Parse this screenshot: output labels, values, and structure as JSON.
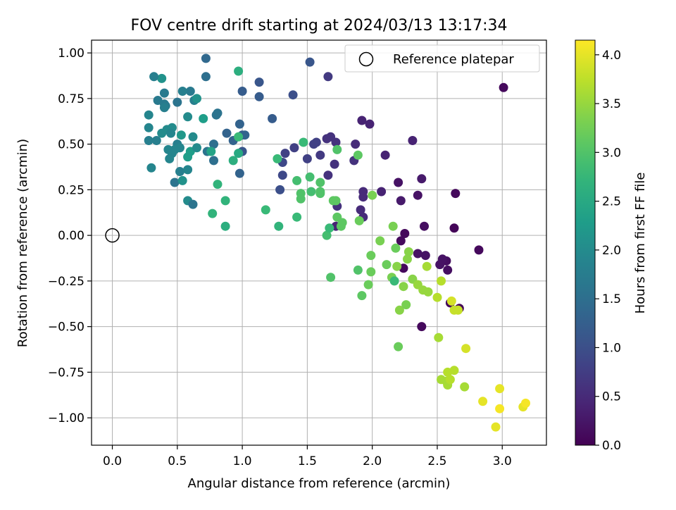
{
  "chart_data": {
    "type": "scatter",
    "title": "FOV centre drift starting at 2024/03/13 13:17:34",
    "xlabel": "Angular distance from reference (arcmin)",
    "ylabel": "Rotation from reference (arcmin)",
    "xlim": [
      -0.16,
      3.34
    ],
    "ylim": [
      -1.15,
      1.07
    ],
    "x_ticks": [
      0.0,
      0.5,
      1.0,
      1.5,
      2.0,
      2.5,
      3.0
    ],
    "x_tick_labels": [
      "0.0",
      "0.5",
      "1.0",
      "1.5",
      "2.0",
      "2.5",
      "3.0"
    ],
    "y_ticks": [
      1.0,
      0.75,
      0.5,
      0.25,
      0.0,
      -0.25,
      -0.5,
      -0.75,
      -1.0
    ],
    "y_tick_labels": [
      "1.00",
      "0.75",
      "0.50",
      "0.25",
      "0.00",
      "−0.25",
      "−0.50",
      "−0.75",
      "−1.00"
    ],
    "grid": true,
    "legend": {
      "placement": "top-right",
      "entries": [
        {
          "label": "Reference platepar",
          "marker": "open-circle"
        }
      ]
    },
    "reference_point": {
      "x": 0.0,
      "y": 0.0
    },
    "colorbar": {
      "label": "Hours from first FF file",
      "colormap": "viridis",
      "range": [
        0.0,
        4.15
      ],
      "ticks": [
        0.0,
        0.5,
        1.0,
        1.5,
        2.0,
        2.5,
        3.0,
        3.5,
        4.0
      ],
      "tick_labels": [
        "0.0",
        "0.5",
        "1.0",
        "1.5",
        "2.0",
        "2.5",
        "3.0",
        "3.5",
        "4.0"
      ]
    },
    "series": [
      {
        "points": [
          {
            "x": 3.01,
            "y": 0.81,
            "c": 0.1
          },
          {
            "x": 2.82,
            "y": -0.08,
            "c": 0.1
          },
          {
            "x": 2.67,
            "y": -0.4,
            "c": 0.05
          },
          {
            "x": 2.63,
            "y": 0.04,
            "c": 0.05
          },
          {
            "x": 2.64,
            "y": 0.23,
            "c": 0.1
          },
          {
            "x": 2.6,
            "y": -0.37,
            "c": 0.1
          },
          {
            "x": 2.58,
            "y": -0.19,
            "c": 0.15
          },
          {
            "x": 2.57,
            "y": -0.14,
            "c": 0.15
          },
          {
            "x": 2.54,
            "y": -0.13,
            "c": 0.2
          },
          {
            "x": 2.52,
            "y": -0.16,
            "c": 0.2
          },
          {
            "x": 2.41,
            "y": -0.11,
            "c": 0.2
          },
          {
            "x": 2.38,
            "y": -0.5,
            "c": 0.1
          },
          {
            "x": 2.35,
            "y": -0.1,
            "c": 0.2
          },
          {
            "x": 2.4,
            "y": 0.05,
            "c": 0.15
          },
          {
            "x": 2.35,
            "y": 0.22,
            "c": 0.2
          },
          {
            "x": 2.38,
            "y": 0.31,
            "c": 0.3
          },
          {
            "x": 2.31,
            "y": 0.52,
            "c": 0.4
          },
          {
            "x": 2.25,
            "y": 0.01,
            "c": 0.1
          },
          {
            "x": 2.22,
            "y": -0.03,
            "c": 0.1
          },
          {
            "x": 2.24,
            "y": -0.18,
            "c": 0.1
          },
          {
            "x": 2.2,
            "y": 0.29,
            "c": 0.2
          },
          {
            "x": 2.22,
            "y": 0.19,
            "c": 0.3
          },
          {
            "x": 2.1,
            "y": 0.44,
            "c": 0.4
          },
          {
            "x": 2.07,
            "y": 0.24,
            "c": 0.4
          },
          {
            "x": 1.98,
            "y": 0.61,
            "c": 0.4
          },
          {
            "x": 1.92,
            "y": 0.63,
            "c": 0.4
          },
          {
            "x": 1.87,
            "y": 0.5,
            "c": 0.5
          },
          {
            "x": 1.86,
            "y": 0.41,
            "c": 0.6
          },
          {
            "x": 1.93,
            "y": 0.24,
            "c": 0.5
          },
          {
            "x": 1.93,
            "y": 0.21,
            "c": 0.5
          },
          {
            "x": 1.91,
            "y": 0.14,
            "c": 0.5
          },
          {
            "x": 1.93,
            "y": 0.1,
            "c": 0.5
          },
          {
            "x": 1.72,
            "y": 0.05,
            "c": 0.4
          },
          {
            "x": 1.73,
            "y": 0.16,
            "c": 0.6
          },
          {
            "x": 1.72,
            "y": 0.51,
            "c": 0.6
          },
          {
            "x": 1.68,
            "y": 0.54,
            "c": 0.6
          },
          {
            "x": 1.65,
            "y": 0.53,
            "c": 0.6
          },
          {
            "x": 1.71,
            "y": 0.39,
            "c": 0.6
          },
          {
            "x": 1.66,
            "y": 0.33,
            "c": 0.6
          },
          {
            "x": 1.66,
            "y": 0.87,
            "c": 0.7
          },
          {
            "x": 1.6,
            "y": 0.44,
            "c": 0.7
          },
          {
            "x": 1.57,
            "y": 0.51,
            "c": 0.8
          },
          {
            "x": 1.55,
            "y": 0.5,
            "c": 0.8
          },
          {
            "x": 1.5,
            "y": 0.42,
            "c": 0.8
          },
          {
            "x": 1.52,
            "y": 0.95,
            "c": 1.1
          },
          {
            "x": 1.4,
            "y": 0.48,
            "c": 0.8
          },
          {
            "x": 1.33,
            "y": 0.45,
            "c": 0.8
          },
          {
            "x": 1.31,
            "y": 0.4,
            "c": 0.9
          },
          {
            "x": 1.31,
            "y": 0.33,
            "c": 0.9
          },
          {
            "x": 1.29,
            "y": 0.25,
            "c": 1.0
          },
          {
            "x": 1.39,
            "y": 0.77,
            "c": 1.0
          },
          {
            "x": 1.23,
            "y": 0.64,
            "c": 1.2
          },
          {
            "x": 1.13,
            "y": 0.76,
            "c": 1.2
          },
          {
            "x": 1.13,
            "y": 0.84,
            "c": 1.1
          },
          {
            "x": 1.0,
            "y": 0.79,
            "c": 1.2
          },
          {
            "x": 1.0,
            "y": 0.55,
            "c": 1.2
          },
          {
            "x": 1.02,
            "y": 0.55,
            "c": 1.3
          },
          {
            "x": 1.0,
            "y": 0.46,
            "c": 1.1
          },
          {
            "x": 0.98,
            "y": 0.61,
            "c": 1.3
          },
          {
            "x": 0.93,
            "y": 0.52,
            "c": 1.3
          },
          {
            "x": 0.88,
            "y": 0.56,
            "c": 1.3
          },
          {
            "x": 0.98,
            "y": 0.34,
            "c": 1.3
          },
          {
            "x": 0.78,
            "y": 0.5,
            "c": 1.5
          },
          {
            "x": 0.78,
            "y": 0.41,
            "c": 1.5
          },
          {
            "x": 0.72,
            "y": 0.97,
            "c": 1.4
          },
          {
            "x": 0.72,
            "y": 0.87,
            "c": 1.5
          },
          {
            "x": 0.8,
            "y": 0.66,
            "c": 1.6
          },
          {
            "x": 0.81,
            "y": 0.67,
            "c": 1.6
          },
          {
            "x": 0.73,
            "y": 0.46,
            "c": 1.6
          },
          {
            "x": 0.6,
            "y": 0.79,
            "c": 1.7
          },
          {
            "x": 0.54,
            "y": 0.79,
            "c": 1.8
          },
          {
            "x": 0.5,
            "y": 0.73,
            "c": 1.6
          },
          {
            "x": 0.38,
            "y": 0.86,
            "c": 2.1
          },
          {
            "x": 0.32,
            "y": 0.87,
            "c": 1.8
          },
          {
            "x": 0.4,
            "y": 0.78,
            "c": 1.7
          },
          {
            "x": 0.35,
            "y": 0.74,
            "c": 1.7
          },
          {
            "x": 0.4,
            "y": 0.72,
            "c": 1.7
          },
          {
            "x": 0.41,
            "y": 0.71,
            "c": 1.7
          },
          {
            "x": 0.4,
            "y": 0.7,
            "c": 1.8
          },
          {
            "x": 0.63,
            "y": 0.74,
            "c": 1.8
          },
          {
            "x": 0.65,
            "y": 0.75,
            "c": 2.1
          },
          {
            "x": 0.28,
            "y": 0.66,
            "c": 1.9
          },
          {
            "x": 0.58,
            "y": 0.65,
            "c": 2.0
          },
          {
            "x": 0.28,
            "y": 0.59,
            "c": 1.9
          },
          {
            "x": 0.28,
            "y": 0.52,
            "c": 1.8
          },
          {
            "x": 0.34,
            "y": 0.52,
            "c": 1.8
          },
          {
            "x": 0.38,
            "y": 0.56,
            "c": 2.0
          },
          {
            "x": 0.42,
            "y": 0.58,
            "c": 2.0
          },
          {
            "x": 0.46,
            "y": 0.59,
            "c": 2.0
          },
          {
            "x": 0.45,
            "y": 0.56,
            "c": 1.9
          },
          {
            "x": 0.53,
            "y": 0.55,
            "c": 2.2
          },
          {
            "x": 0.5,
            "y": 0.5,
            "c": 1.8
          },
          {
            "x": 0.52,
            "y": 0.48,
            "c": 1.9
          },
          {
            "x": 0.48,
            "y": 0.47,
            "c": 1.9
          },
          {
            "x": 0.43,
            "y": 0.47,
            "c": 1.9
          },
          {
            "x": 0.46,
            "y": 0.45,
            "c": 1.9
          },
          {
            "x": 0.44,
            "y": 0.42,
            "c": 1.9
          },
          {
            "x": 0.58,
            "y": 0.43,
            "c": 2.3
          },
          {
            "x": 0.6,
            "y": 0.46,
            "c": 2.3
          },
          {
            "x": 0.62,
            "y": 0.54,
            "c": 2.0
          },
          {
            "x": 0.65,
            "y": 0.48,
            "c": 2.0
          },
          {
            "x": 0.52,
            "y": 0.35,
            "c": 1.8
          },
          {
            "x": 0.48,
            "y": 0.29,
            "c": 1.6
          },
          {
            "x": 0.3,
            "y": 0.37,
            "c": 1.9
          },
          {
            "x": 0.58,
            "y": 0.36,
            "c": 1.9
          },
          {
            "x": 0.54,
            "y": 0.3,
            "c": 2.1
          },
          {
            "x": 0.58,
            "y": 0.19,
            "c": 2.0
          },
          {
            "x": 0.62,
            "y": 0.17,
            "c": 1.6
          },
          {
            "x": 0.7,
            "y": 0.64,
            "c": 2.3
          },
          {
            "x": 0.76,
            "y": 0.46,
            "c": 2.4
          },
          {
            "x": 0.81,
            "y": 0.28,
            "c": 2.7
          },
          {
            "x": 0.77,
            "y": 0.12,
            "c": 2.7
          },
          {
            "x": 0.87,
            "y": 0.19,
            "c": 2.7
          },
          {
            "x": 0.87,
            "y": 0.05,
            "c": 2.6
          },
          {
            "x": 0.93,
            "y": 0.41,
            "c": 2.6
          },
          {
            "x": 0.97,
            "y": 0.45,
            "c": 2.5
          },
          {
            "x": 0.97,
            "y": 0.54,
            "c": 2.8
          },
          {
            "x": 0.97,
            "y": 0.9,
            "c": 2.6
          },
          {
            "x": 1.18,
            "y": 0.14,
            "c": 2.8
          },
          {
            "x": 1.28,
            "y": 0.05,
            "c": 2.7
          },
          {
            "x": 1.27,
            "y": 0.42,
            "c": 2.8
          },
          {
            "x": 1.42,
            "y": 0.3,
            "c": 2.9
          },
          {
            "x": 1.42,
            "y": 0.1,
            "c": 2.8
          },
          {
            "x": 1.45,
            "y": 0.23,
            "c": 3.0
          },
          {
            "x": 1.45,
            "y": 0.2,
            "c": 3.0
          },
          {
            "x": 1.47,
            "y": 0.51,
            "c": 2.8
          },
          {
            "x": 1.52,
            "y": 0.32,
            "c": 2.9
          },
          {
            "x": 1.53,
            "y": 0.24,
            "c": 2.9
          },
          {
            "x": 1.6,
            "y": 0.29,
            "c": 3.0
          },
          {
            "x": 1.6,
            "y": 0.23,
            "c": 3.0
          },
          {
            "x": 1.6,
            "y": 0.24,
            "c": 3.0
          },
          {
            "x": 1.65,
            "y": 0.0,
            "c": 2.9
          },
          {
            "x": 1.67,
            "y": 0.04,
            "c": 2.8
          },
          {
            "x": 1.7,
            "y": 0.19,
            "c": 3.1
          },
          {
            "x": 1.72,
            "y": 0.19,
            "c": 3.1
          },
          {
            "x": 1.73,
            "y": 0.47,
            "c": 3.0
          },
          {
            "x": 1.73,
            "y": 0.1,
            "c": 3.1
          },
          {
            "x": 1.76,
            "y": 0.05,
            "c": 3.1
          },
          {
            "x": 1.77,
            "y": 0.07,
            "c": 3.1
          },
          {
            "x": 1.68,
            "y": -0.23,
            "c": 3.0
          },
          {
            "x": 1.89,
            "y": 0.44,
            "c": 3.1
          },
          {
            "x": 1.9,
            "y": 0.08,
            "c": 3.2
          },
          {
            "x": 1.89,
            "y": -0.19,
            "c": 3.0
          },
          {
            "x": 1.92,
            "y": -0.33,
            "c": 3.1
          },
          {
            "x": 1.97,
            "y": -0.27,
            "c": 3.2
          },
          {
            "x": 1.99,
            "y": -0.11,
            "c": 3.2
          },
          {
            "x": 1.99,
            "y": -0.2,
            "c": 3.2
          },
          {
            "x": 2.0,
            "y": 0.22,
            "c": 3.3
          },
          {
            "x": 2.06,
            "y": -0.03,
            "c": 3.3
          },
          {
            "x": 2.11,
            "y": -0.16,
            "c": 3.2
          },
          {
            "x": 2.15,
            "y": -0.23,
            "c": 3.3
          },
          {
            "x": 2.16,
            "y": 0.05,
            "c": 3.3
          },
          {
            "x": 2.17,
            "y": -0.25,
            "c": 2.8
          },
          {
            "x": 2.18,
            "y": -0.07,
            "c": 3.2
          },
          {
            "x": 2.19,
            "y": -0.17,
            "c": 3.4
          },
          {
            "x": 2.2,
            "y": -0.61,
            "c": 3.2
          },
          {
            "x": 2.21,
            "y": -0.41,
            "c": 3.4
          },
          {
            "x": 2.24,
            "y": -0.28,
            "c": 3.4
          },
          {
            "x": 2.26,
            "y": -0.38,
            "c": 3.3
          },
          {
            "x": 2.27,
            "y": -0.13,
            "c": 3.4
          },
          {
            "x": 2.28,
            "y": -0.09,
            "c": 3.4
          },
          {
            "x": 2.31,
            "y": -0.24,
            "c": 3.4
          },
          {
            "x": 2.35,
            "y": -0.27,
            "c": 3.5
          },
          {
            "x": 2.39,
            "y": -0.3,
            "c": 3.5
          },
          {
            "x": 2.42,
            "y": -0.17,
            "c": 3.6
          },
          {
            "x": 2.43,
            "y": -0.31,
            "c": 3.5
          },
          {
            "x": 2.5,
            "y": -0.34,
            "c": 3.7
          },
          {
            "x": 2.51,
            "y": -0.56,
            "c": 3.6
          },
          {
            "x": 2.53,
            "y": -0.25,
            "c": 3.7
          },
          {
            "x": 2.53,
            "y": -0.79,
            "c": 3.6
          },
          {
            "x": 2.57,
            "y": -0.8,
            "c": 3.6
          },
          {
            "x": 2.58,
            "y": -0.82,
            "c": 3.6
          },
          {
            "x": 2.58,
            "y": -0.75,
            "c": 3.7
          },
          {
            "x": 2.6,
            "y": -0.79,
            "c": 3.7
          },
          {
            "x": 2.61,
            "y": -0.36,
            "c": 3.9
          },
          {
            "x": 2.63,
            "y": -0.41,
            "c": 3.8
          },
          {
            "x": 2.63,
            "y": -0.74,
            "c": 3.7
          },
          {
            "x": 2.66,
            "y": -0.41,
            "c": 3.8
          },
          {
            "x": 2.71,
            "y": -0.83,
            "c": 3.6
          },
          {
            "x": 2.72,
            "y": -0.62,
            "c": 3.9
          },
          {
            "x": 2.85,
            "y": -0.91,
            "c": 4.0
          },
          {
            "x": 2.95,
            "y": -1.05,
            "c": 4.0
          },
          {
            "x": 2.98,
            "y": -0.84,
            "c": 4.0
          },
          {
            "x": 2.98,
            "y": -0.95,
            "c": 4.1
          },
          {
            "x": 3.16,
            "y": -0.94,
            "c": 4.0
          },
          {
            "x": 3.18,
            "y": -0.92,
            "c": 4.1
          }
        ]
      }
    ]
  }
}
